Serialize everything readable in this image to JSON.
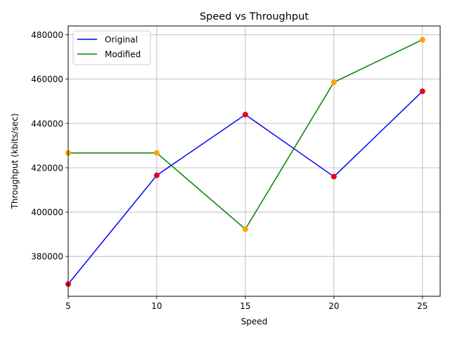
{
  "chart_data": {
    "type": "line",
    "title": "Speed vs Throughput",
    "xlabel": "Speed",
    "ylabel": "Throughput (kbits/sec)",
    "xlim": [
      5,
      26
    ],
    "ylim": [
      362000,
      484000
    ],
    "x": [
      5,
      10,
      15,
      20,
      25
    ],
    "xticks": [
      5,
      10,
      15,
      20,
      25
    ],
    "yticks": [
      380000,
      400000,
      420000,
      440000,
      460000,
      480000
    ],
    "grid": true,
    "legend_position": "top-left",
    "series": [
      {
        "name": "Original",
        "values": [
          367500,
          416600,
          444000,
          416000,
          454500
        ],
        "line_color": "#0000ff",
        "marker_color": "#e8001c"
      },
      {
        "name": "Modified",
        "values": [
          426700,
          426700,
          392300,
          458600,
          477800
        ],
        "line_color": "#008000",
        "marker_color": "#ffa500"
      }
    ]
  }
}
